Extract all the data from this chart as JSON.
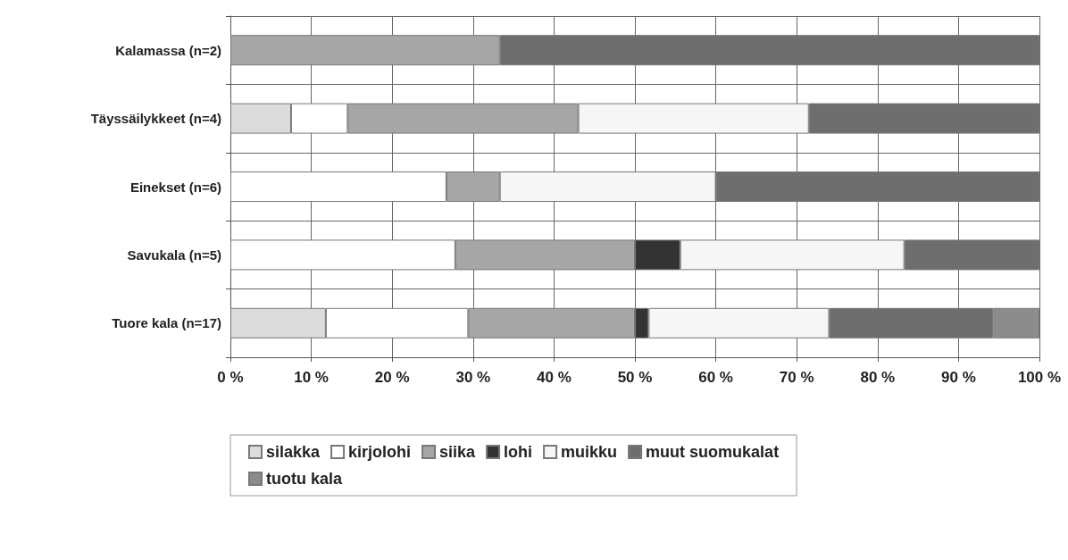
{
  "chart_data": {
    "type": "bar",
    "orientation": "horizontal",
    "stacked": true,
    "categories": [
      "Kalamassa (n=2)",
      "Täyssäilykkeet (n=4)",
      "Einekset (n=6)",
      "Savukala (n=5)",
      "Tuore kala (n=17)"
    ],
    "series": [
      {
        "name": "silakka",
        "color": "#dcdcdc",
        "values": [
          null,
          7.5,
          null,
          null,
          11.8
        ]
      },
      {
        "name": "kirjolohi",
        "color": "#ffffff",
        "values": [
          null,
          7,
          26.7,
          27.8,
          17.6
        ]
      },
      {
        "name": "siika",
        "color": "#a6a6a6",
        "values": [
          33.3,
          28.5,
          6.6,
          22.2,
          20.6
        ]
      },
      {
        "name": "lohi",
        "color": "#333333",
        "values": [
          null,
          null,
          null,
          5.6,
          1.7
        ]
      },
      {
        "name": "muikku",
        "color": "#f6f6f6",
        "values": [
          null,
          28.5,
          26.7,
          27.7,
          22.3
        ]
      },
      {
        "name": "muut suomukalat",
        "color": "#6e6e6e",
        "values": [
          66.7,
          28.5,
          40,
          16.7,
          20.3
        ]
      },
      {
        "name": "tuotu kala",
        "color": "#8c8c8c",
        "values": [
          null,
          null,
          null,
          null,
          5.7
        ]
      }
    ],
    "xlim": [
      0,
      100
    ],
    "xticks": [
      {
        "value": 0,
        "label": "0 %"
      },
      {
        "value": 10,
        "label": "10 %"
      },
      {
        "value": 20,
        "label": "20 %"
      },
      {
        "value": 30,
        "label": "30 %"
      },
      {
        "value": 40,
        "label": "40 %"
      },
      {
        "value": 50,
        "label": "50 %"
      },
      {
        "value": 60,
        "label": "60 %"
      },
      {
        "value": 70,
        "label": "70 %"
      },
      {
        "value": 80,
        "label": "80 %"
      },
      {
        "value": 90,
        "label": "90 %"
      },
      {
        "value": 100,
        "label": "100 %"
      }
    ],
    "grid": true,
    "legend": "bottom"
  }
}
